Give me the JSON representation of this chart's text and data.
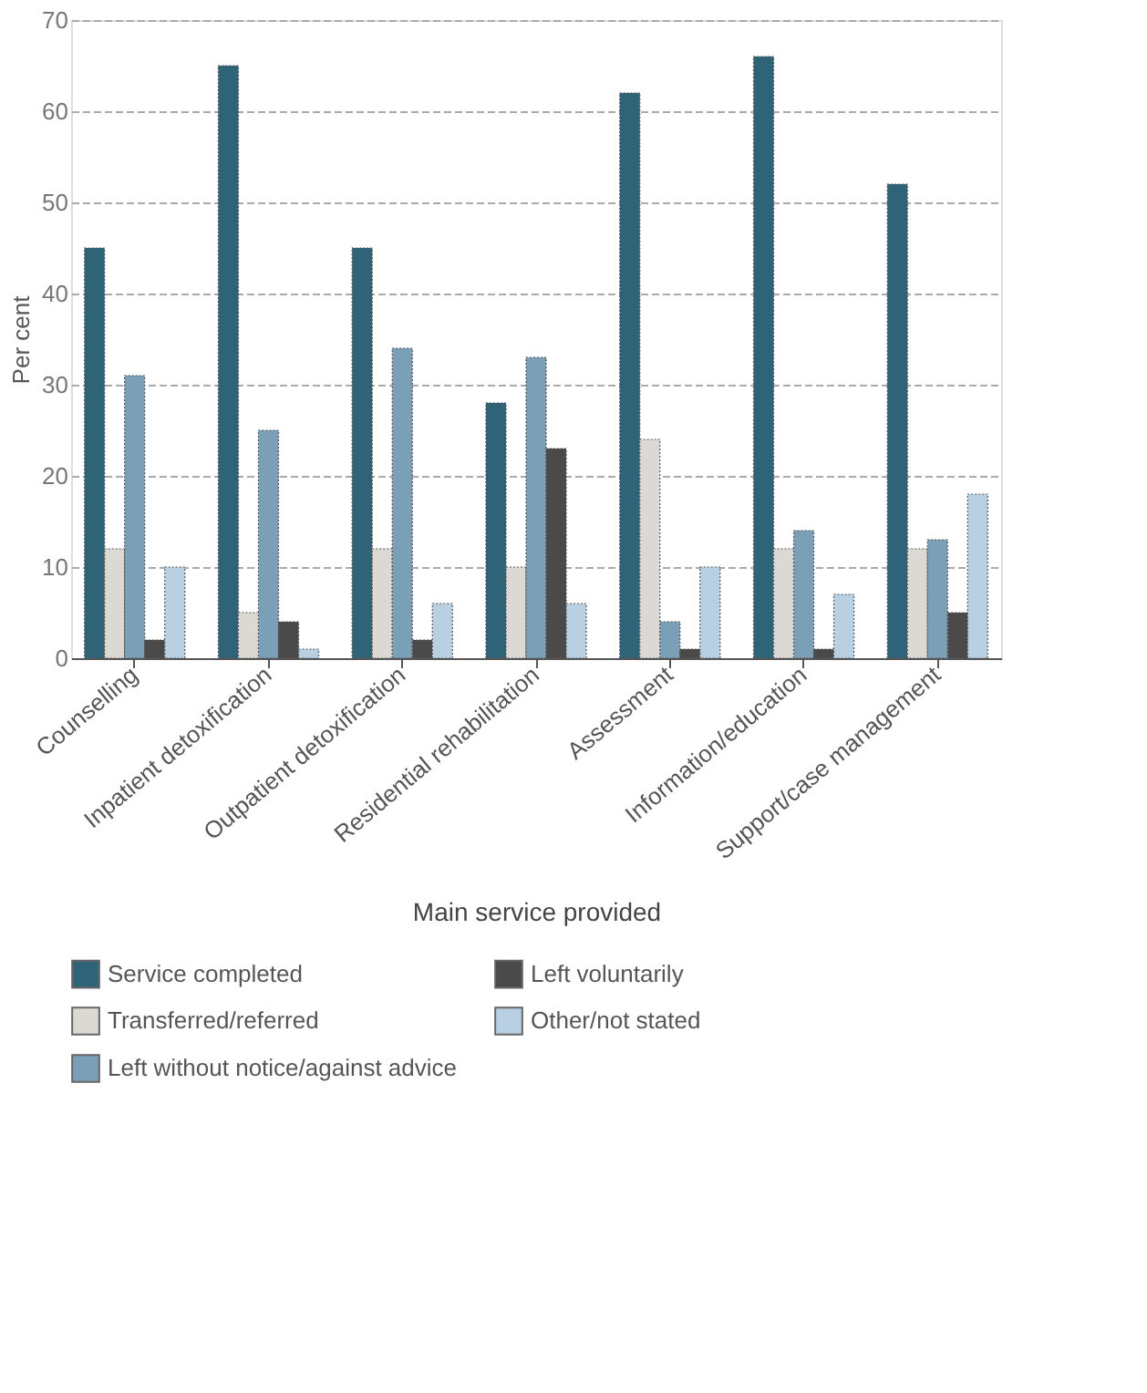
{
  "chart_data": {
    "type": "bar",
    "ylabel": "Per cent",
    "xlabel": "Main service provided",
    "categories": [
      "Counselling",
      "Inpatient detoxification",
      "Outpatient detoxification",
      "Residential rehabilitation",
      "Assessment",
      "Information/education",
      "Support/case management"
    ],
    "series": [
      {
        "name": "Service completed",
        "color": "#2f6478",
        "values": [
          45,
          65,
          45,
          28,
          62,
          66,
          52
        ]
      },
      {
        "name": "Transferred/referred",
        "color": "#dcd8d4",
        "values": [
          12,
          5,
          12,
          10,
          24,
          12,
          12
        ]
      },
      {
        "name": "Left without notice/against advice",
        "color": "#7b9fb6",
        "values": [
          31,
          25,
          34,
          33,
          4,
          14,
          13
        ]
      },
      {
        "name": "Left voluntarily",
        "color": "#4a4a4a",
        "values": [
          2,
          4,
          2,
          23,
          1,
          1,
          5
        ]
      },
      {
        "name": "Other/not stated",
        "color": "#b8d0e2",
        "values": [
          10,
          1,
          6,
          6,
          10,
          7,
          18
        ]
      }
    ],
    "ylim": [
      0,
      70
    ],
    "yticks": [
      0,
      10,
      20,
      30,
      40,
      50,
      60,
      70
    ],
    "grid": "y",
    "legend": "bottom"
  }
}
